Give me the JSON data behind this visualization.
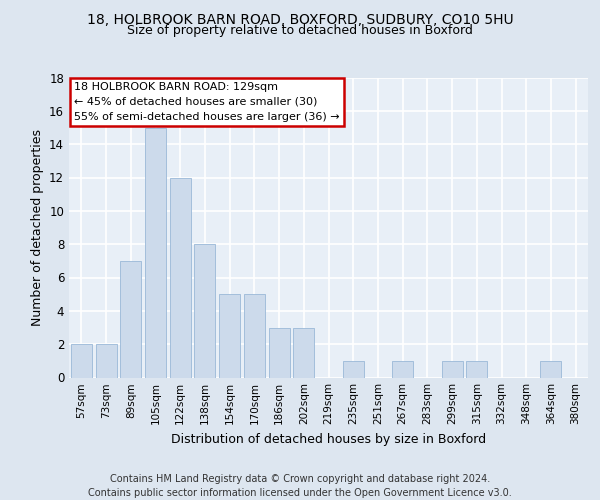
{
  "title1": "18, HOLBROOK BARN ROAD, BOXFORD, SUDBURY, CO10 5HU",
  "title2": "Size of property relative to detached houses in Boxford",
  "xlabel": "Distribution of detached houses by size in Boxford",
  "ylabel": "Number of detached properties",
  "categories": [
    "57sqm",
    "73sqm",
    "89sqm",
    "105sqm",
    "122sqm",
    "138sqm",
    "154sqm",
    "170sqm",
    "186sqm",
    "202sqm",
    "219sqm",
    "235sqm",
    "251sqm",
    "267sqm",
    "283sqm",
    "299sqm",
    "315sqm",
    "332sqm",
    "348sqm",
    "364sqm",
    "380sqm"
  ],
  "values": [
    2,
    2,
    7,
    15,
    12,
    8,
    5,
    5,
    3,
    3,
    0,
    1,
    0,
    1,
    0,
    1,
    1,
    0,
    0,
    1,
    0
  ],
  "bar_color": "#ccdaeb",
  "bar_edge_color": "#9ab8d8",
  "ylim": [
    0,
    18
  ],
  "yticks": [
    0,
    2,
    4,
    6,
    8,
    10,
    12,
    14,
    16,
    18
  ],
  "annotation_text": "18 HOLBROOK BARN ROAD: 129sqm\n← 45% of detached houses are smaller (30)\n55% of semi-detached houses are larger (36) →",
  "annotation_box_color": "#ffffff",
  "annotation_box_edge": "#cc0000",
  "footer": "Contains HM Land Registry data © Crown copyright and database right 2024.\nContains public sector information licensed under the Open Government Licence v3.0.",
  "bg_color": "#dde6f0",
  "plot_bg_color": "#e8eff7",
  "grid_color": "#ffffff",
  "title_fontsize": 10,
  "subtitle_fontsize": 9,
  "axis_label_fontsize": 9,
  "tick_fontsize": 7.5,
  "footer_fontsize": 7,
  "annotation_fontsize": 8
}
